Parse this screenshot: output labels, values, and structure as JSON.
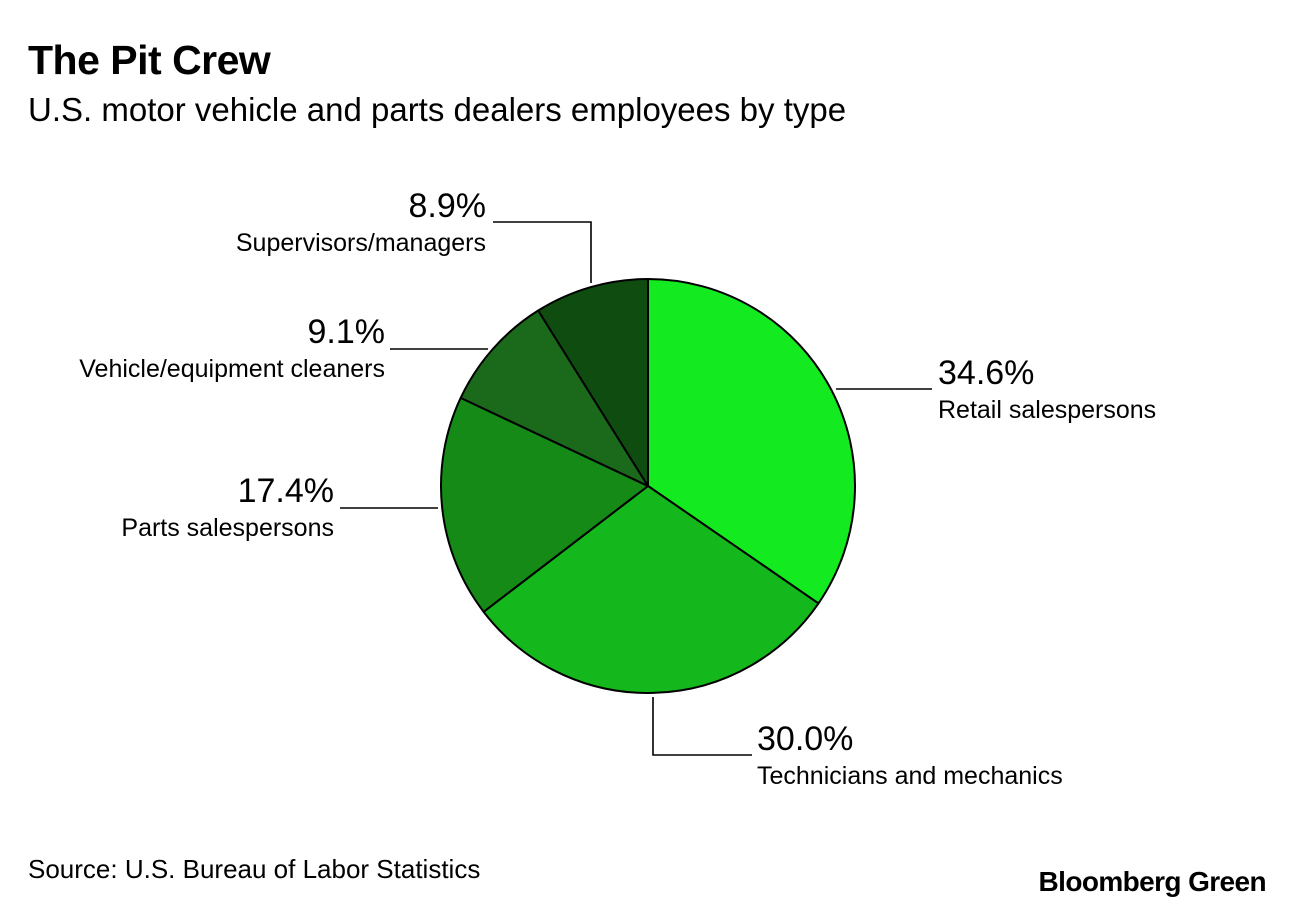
{
  "chart_data": {
    "type": "pie",
    "title": "The Pit Crew",
    "subtitle": "U.S. motor vehicle and parts dealers employees by type",
    "slices": [
      {
        "name": "Retail salespersons",
        "value": 34.6,
        "label": "34.6%",
        "color": "#14ea20"
      },
      {
        "name": "Technicians and mechanics",
        "value": 30.0,
        "label": "30.0%",
        "color": "#15b81c"
      },
      {
        "name": "Parts salespersons",
        "value": 17.4,
        "label": "17.4%",
        "color": "#158a17"
      },
      {
        "name": "Vehicle/equipment cleaners",
        "value": 9.1,
        "label": "9.1%",
        "color": "#1b6a1b"
      },
      {
        "name": "Supervisors/managers",
        "value": 8.9,
        "label": "8.9%",
        "color": "#0f4c10"
      }
    ],
    "source": "Source: U.S. Bureau of Labor Statistics"
  },
  "brand": "Bloomberg Green"
}
